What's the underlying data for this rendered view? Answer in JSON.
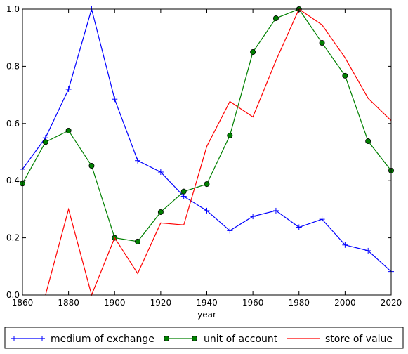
{
  "chart_data": {
    "type": "line",
    "xlabel": "year",
    "ylabel": "",
    "title": "",
    "xlim": [
      1860,
      2020
    ],
    "ylim": [
      0.0,
      1.0
    ],
    "x_ticks": [
      "1860",
      "1880",
      "1900",
      "1920",
      "1940",
      "1960",
      "1980",
      "2000",
      "2020"
    ],
    "y_ticks": [
      "0.0",
      "0.2",
      "0.4",
      "0.6",
      "0.8",
      "1.0"
    ],
    "grid": false,
    "legend_position": "bottom, outside plot",
    "series": [
      {
        "name": "medium of exchange",
        "color": "#0000ff",
        "marker": "plus",
        "x": [
          1860,
          1870,
          1880,
          1890,
          1900,
          1910,
          1920,
          1930,
          1940,
          1950,
          1960,
          1970,
          1980,
          1990,
          2000,
          2010,
          2020
        ],
        "y": [
          0.44,
          0.55,
          0.72,
          1.0,
          0.685,
          0.47,
          0.43,
          0.345,
          0.295,
          0.225,
          0.275,
          0.295,
          0.237,
          0.265,
          0.175,
          0.155,
          0.082
        ]
      },
      {
        "name": "unit of account",
        "color": "#008000",
        "marker": "circle",
        "x": [
          1860,
          1870,
          1880,
          1890,
          1900,
          1910,
          1920,
          1930,
          1940,
          1950,
          1960,
          1970,
          1980,
          1990,
          2000,
          2010,
          2020
        ],
        "y": [
          0.39,
          0.535,
          0.575,
          0.452,
          0.2,
          0.187,
          0.29,
          0.362,
          0.388,
          0.558,
          0.85,
          0.968,
          1.0,
          0.882,
          0.767,
          0.538,
          0.435
        ]
      },
      {
        "name": "store of value",
        "color": "#ff0000",
        "marker": "none",
        "x": [
          1870,
          1880,
          1890,
          1900,
          1910,
          1920,
          1930,
          1940,
          1950,
          1960,
          1970,
          1980,
          1990,
          2000,
          2010,
          2020
        ],
        "y": [
          0.0,
          0.3,
          0.0,
          0.2,
          0.075,
          0.252,
          0.245,
          0.52,
          0.677,
          0.623,
          0.82,
          1.0,
          0.945,
          0.83,
          0.688,
          0.61
        ]
      }
    ]
  }
}
